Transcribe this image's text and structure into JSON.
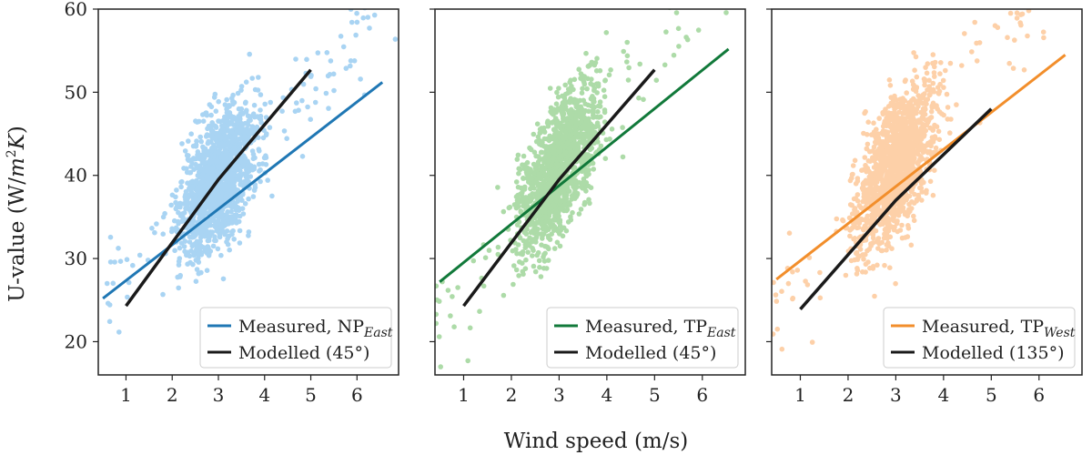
{
  "figure": {
    "ylabel_prefix": "U-value (W/",
    "ylabel_math": "m",
    "ylabel_sup": "2",
    "ylabel_unit": "K",
    "ylabel_suffix": ")",
    "xlabel": "Wind speed (m/s)"
  },
  "chart_data": [
    {
      "type": "scatter",
      "panel": "left",
      "xlim": [
        0.4,
        6.9
      ],
      "ylim": [
        16,
        60
      ],
      "xticks": [
        1,
        2,
        3,
        4,
        5,
        6
      ],
      "yticks": [
        20,
        30,
        40,
        50,
        60
      ],
      "scatter_color": "#a9d4f3",
      "cloud": {
        "x_range": [
          0.5,
          6.9
        ],
        "slope": 6.0,
        "intercept": 21.5,
        "spread": 4.0,
        "count": 1500
      },
      "series": [
        {
          "name": "Measured, NP",
          "subscript": "East",
          "color": "#1f77b4",
          "x": [
            0.5,
            6.55
          ],
          "y": [
            25.2,
            51.2
          ]
        },
        {
          "name": "Modelled (45°)",
          "subscript": "",
          "color": "#1a1a1a",
          "x": [
            1.0,
            3.0,
            5.0
          ],
          "y": [
            24.3,
            39.5,
            52.7
          ]
        }
      ],
      "legend_position": "lower-right",
      "grid": false
    },
    {
      "type": "scatter",
      "panel": "middle",
      "xlim": [
        0.4,
        6.9
      ],
      "ylim": [
        16,
        60
      ],
      "xticks": [
        1,
        2,
        3,
        4,
        5,
        6
      ],
      "yticks": [
        20,
        30,
        40,
        50,
        60
      ],
      "scatter_color": "#addba8",
      "cloud": {
        "x_range": [
          0.4,
          6.9
        ],
        "slope": 7.3,
        "intercept": 19.0,
        "spread": 4.0,
        "count": 1500
      },
      "series": [
        {
          "name": "Measured, TP",
          "subscript": "East",
          "color": "#11793a",
          "x": [
            0.5,
            6.55
          ],
          "y": [
            27.2,
            55.2
          ]
        },
        {
          "name": "Modelled (45°)",
          "subscript": "",
          "color": "#1a1a1a",
          "x": [
            1.0,
            3.0,
            5.0
          ],
          "y": [
            24.3,
            39.5,
            52.7
          ]
        }
      ],
      "legend_position": "lower-right",
      "grid": false
    },
    {
      "type": "scatter",
      "panel": "right",
      "xlim": [
        0.4,
        6.9
      ],
      "ylim": [
        16,
        60
      ],
      "xticks": [
        1,
        2,
        3,
        4,
        5,
        6
      ],
      "yticks": [
        20,
        30,
        40,
        50,
        60
      ],
      "scatter_color": "#fdd0a8",
      "cloud": {
        "x_range": [
          0.4,
          6.9
        ],
        "slope": 7.1,
        "intercept": 20.0,
        "spread": 4.0,
        "count": 1500
      },
      "series": [
        {
          "name": "Measured, TP",
          "subscript": "West",
          "color": "#f28e2b",
          "x": [
            0.5,
            6.55
          ],
          "y": [
            27.5,
            54.5
          ]
        },
        {
          "name": "Modelled (135°)",
          "subscript": "",
          "color": "#1a1a1a",
          "x": [
            1.0,
            3.0,
            5.0
          ],
          "y": [
            23.9,
            37.0,
            48.0
          ]
        }
      ],
      "legend_position": "lower-right",
      "grid": false
    }
  ]
}
